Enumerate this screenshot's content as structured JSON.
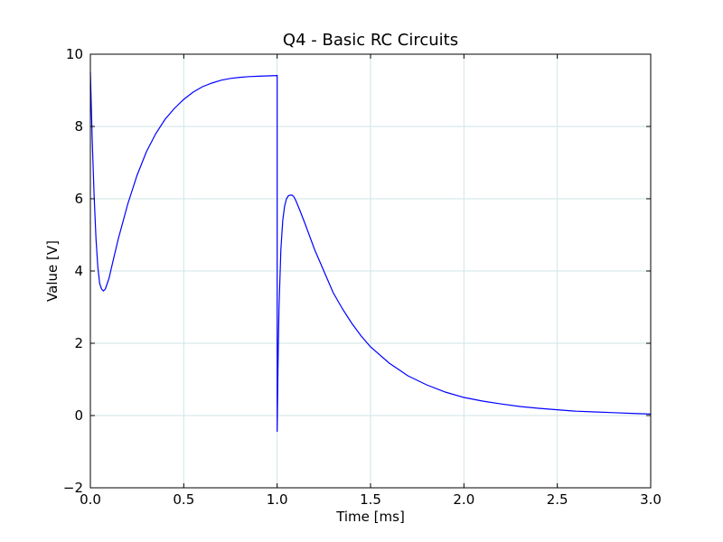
{
  "chart_data": {
    "type": "line",
    "title": "Q4 - Basic RC Circuits",
    "xlabel": "Time  [ms]",
    "ylabel": "Value [V]",
    "xlim": [
      0.0,
      3.0
    ],
    "ylim": [
      -2,
      10
    ],
    "grid": true,
    "x_ticks": [
      "0.0",
      "0.5",
      "1.0",
      "1.5",
      "2.0",
      "2.5",
      "3.0"
    ],
    "y_ticks": [
      "−2",
      "0",
      "2",
      "4",
      "6",
      "8",
      "10"
    ],
    "series": [
      {
        "color": "#0000ff",
        "x": [
          0.0,
          0.01,
          0.02,
          0.03,
          0.04,
          0.05,
          0.06,
          0.07,
          0.08,
          0.09,
          0.1,
          0.12,
          0.15,
          0.2,
          0.25,
          0.3,
          0.35,
          0.4,
          0.45,
          0.5,
          0.55,
          0.6,
          0.65,
          0.7,
          0.75,
          0.8,
          0.85,
          0.9,
          0.95,
          0.999,
          1.0,
          1.0,
          1.005,
          1.01,
          1.02,
          1.03,
          1.04,
          1.05,
          1.06,
          1.07,
          1.08,
          1.09,
          1.1,
          1.12,
          1.15,
          1.2,
          1.25,
          1.3,
          1.35,
          1.4,
          1.45,
          1.5,
          1.6,
          1.7,
          1.8,
          1.9,
          2.0,
          2.1,
          2.2,
          2.3,
          2.4,
          2.5,
          2.6,
          2.7,
          2.8,
          2.9,
          3.0
        ],
        "y": [
          9.5,
          7.6,
          6.1,
          4.9,
          4.1,
          3.65,
          3.5,
          3.45,
          3.5,
          3.65,
          3.8,
          4.25,
          4.9,
          5.85,
          6.65,
          7.3,
          7.8,
          8.2,
          8.5,
          8.75,
          8.95,
          9.1,
          9.2,
          9.28,
          9.33,
          9.36,
          9.38,
          9.39,
          9.4,
          9.41,
          9.41,
          -0.45,
          1.5,
          3.0,
          4.6,
          5.4,
          5.8,
          6.0,
          6.08,
          6.1,
          6.1,
          6.05,
          5.95,
          5.7,
          5.3,
          4.6,
          4.0,
          3.4,
          2.95,
          2.55,
          2.2,
          1.9,
          1.45,
          1.1,
          0.85,
          0.65,
          0.5,
          0.4,
          0.32,
          0.25,
          0.2,
          0.16,
          0.12,
          0.1,
          0.08,
          0.06,
          0.04
        ]
      }
    ]
  }
}
